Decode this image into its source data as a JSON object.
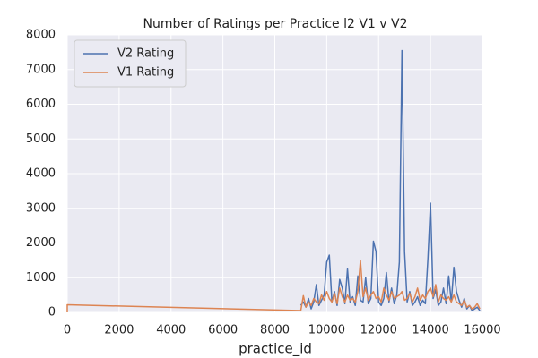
{
  "chart_data": {
    "type": "line",
    "title": "Number of Ratings per Practice l2 V1 v V2",
    "x_label": "practice_id",
    "x": [
      0,
      0,
      9000,
      9100,
      9200,
      9300,
      9400,
      9500,
      9600,
      9700,
      9800,
      9900,
      10000,
      10100,
      10200,
      10300,
      10400,
      10500,
      10600,
      10700,
      10800,
      10900,
      11000,
      11100,
      11200,
      11300,
      11400,
      11500,
      11600,
      11700,
      11800,
      11900,
      12000,
      12100,
      12200,
      12300,
      12400,
      12500,
      12600,
      12700,
      12800,
      12900,
      13000,
      13100,
      13200,
      13300,
      13400,
      13500,
      13600,
      13700,
      13800,
      13900,
      14000,
      14100,
      14200,
      14300,
      14400,
      14500,
      14600,
      14700,
      14800,
      14900,
      15000,
      15100,
      15200,
      15300,
      15400,
      15500,
      15600,
      15700,
      15800,
      15900
    ],
    "series": [
      {
        "name": "V2 Rating",
        "color": "#4c72b0",
        "values": [
          null,
          null,
          200,
          300,
          150,
          400,
          100,
          300,
          800,
          200,
          350,
          500,
          1450,
          1650,
          300,
          600,
          200,
          950,
          700,
          250,
          1250,
          300,
          450,
          200,
          1050,
          350,
          300,
          1000,
          250,
          400,
          2050,
          1750,
          300,
          200,
          400,
          1150,
          300,
          700,
          250,
          500,
          1450,
          7550,
          1750,
          300,
          600,
          200,
          300,
          450,
          200,
          350,
          250,
          1550,
          3150,
          400,
          650,
          200,
          300,
          700,
          250,
          1050,
          300,
          1300,
          600,
          350,
          150,
          400,
          100,
          200,
          50,
          100,
          150,
          50
        ]
      },
      {
        "name": "V1 Rating",
        "color": "#dd8452",
        "values": [
          0,
          220,
          50,
          480,
          150,
          300,
          200,
          400,
          300,
          250,
          500,
          350,
          600,
          400,
          300,
          550,
          250,
          700,
          450,
          300,
          500,
          350,
          400,
          300,
          600,
          1500,
          450,
          700,
          350,
          500,
          600,
          400,
          450,
          300,
          700,
          500,
          350,
          600,
          400,
          450,
          500,
          600,
          350,
          400,
          550,
          300,
          450,
          700,
          350,
          500,
          400,
          600,
          700,
          450,
          800,
          300,
          500,
          400,
          350,
          450,
          300,
          500,
          300,
          250,
          200,
          350,
          150,
          200,
          100,
          150,
          250,
          100
        ]
      }
    ],
    "xlim": [
      0,
      16000
    ],
    "ylim": [
      0,
      8000
    ],
    "xticks": [
      0,
      2000,
      4000,
      6000,
      8000,
      10000,
      12000,
      14000,
      16000
    ],
    "yticks": [
      0,
      1000,
      2000,
      3000,
      4000,
      5000,
      6000,
      7000,
      8000
    ],
    "grid": true,
    "legend": "upper-left"
  }
}
